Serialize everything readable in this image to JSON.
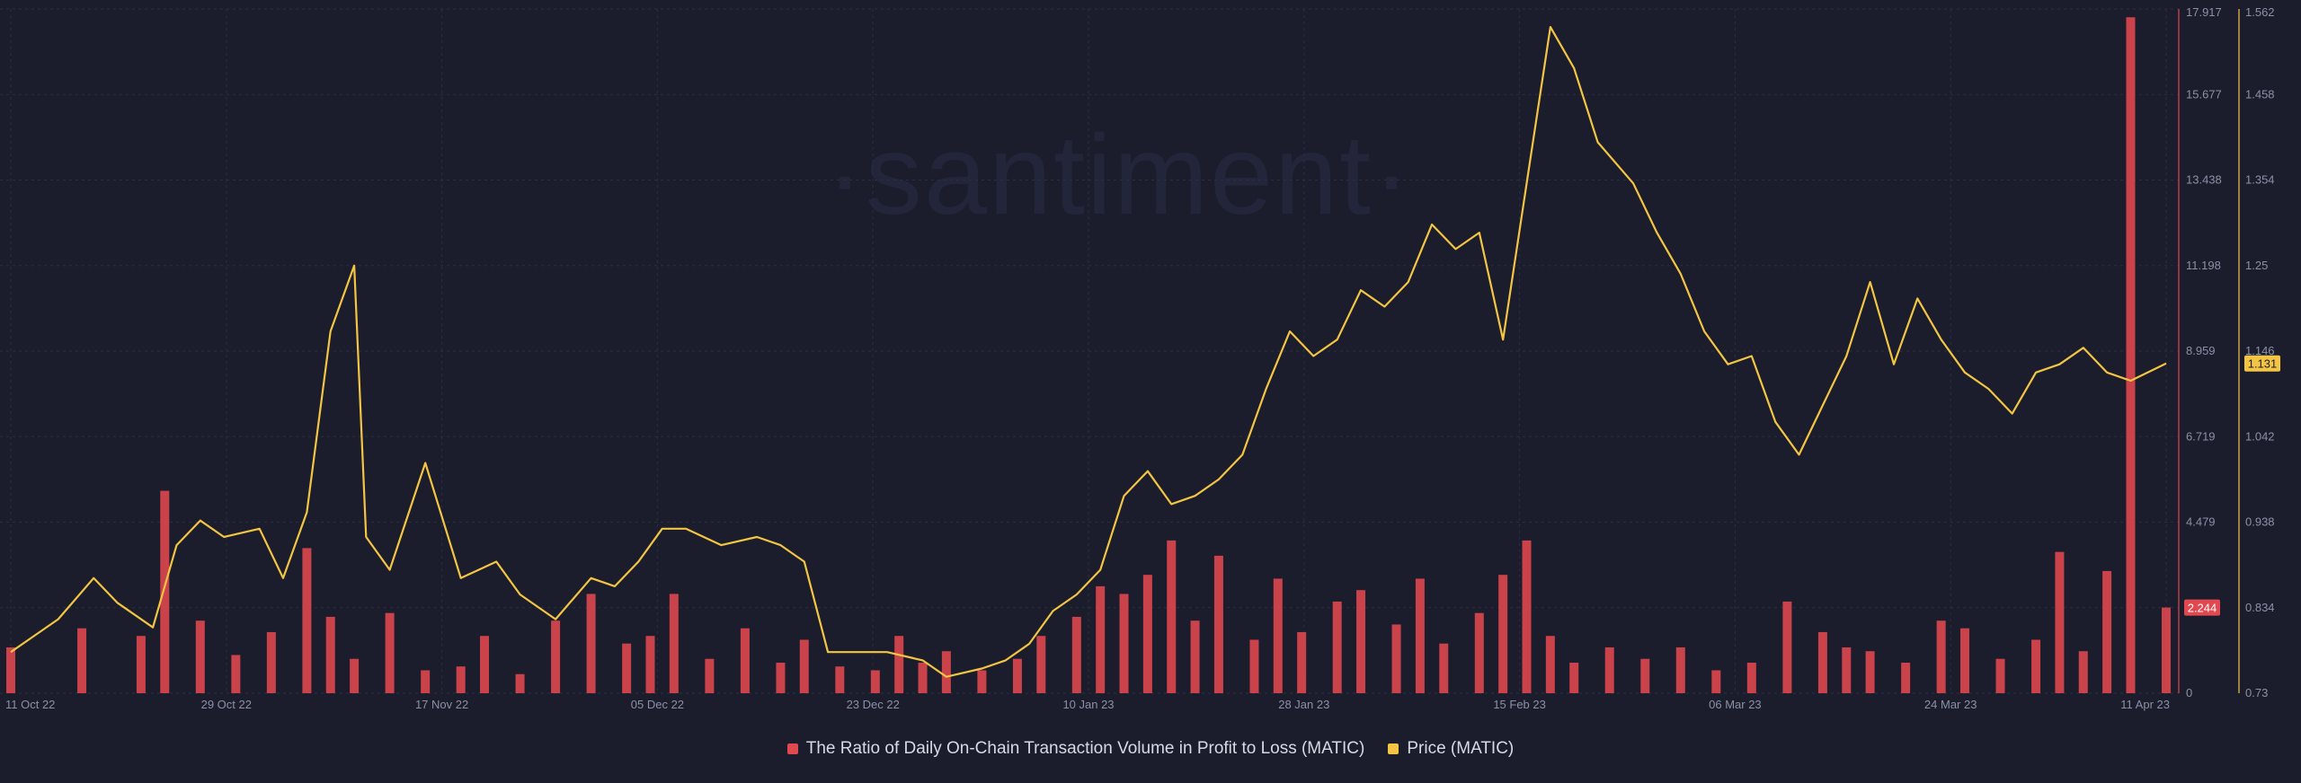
{
  "watermark": "·santiment·",
  "colors": {
    "background": "#1b1d2d",
    "ratio_series": "#e2484f",
    "price_series": "#f3c542",
    "grid": "#2b2e40",
    "axis_text": "#8c91a6"
  },
  "legend": {
    "ratio_label": "The Ratio of Daily On-Chain Transaction Volume in Profit to Loss (MATIC)",
    "price_label": "Price (MATIC)"
  },
  "chart_data": {
    "type": "bar+line",
    "x_tick_labels": [
      "11 Oct 22",
      "29 Oct 22",
      "17 Nov 22",
      "05 Dec 22",
      "23 Dec 22",
      "10 Jan 23",
      "28 Jan 23",
      "15 Feb 23",
      "06 Mar 23",
      "24 Mar 23",
      "11 Apr 23"
    ],
    "x_range": [
      "2022-10-11",
      "2023-04-11"
    ],
    "left_axis_ticks": [
      "17.917",
      "15.677",
      "13.438",
      "11.198",
      "8.959",
      "6.719",
      "4.479",
      "2.244",
      "0"
    ],
    "right_axis_ticks": [
      "1.562",
      "1.458",
      "1.354",
      "1.25",
      "1.146",
      "1.042",
      "0.938",
      "0.834",
      "0.73"
    ],
    "ratio_axis": {
      "min": 0,
      "max": 17.917
    },
    "price_axis": {
      "min": 0.73,
      "max": 1.562
    },
    "last_ratio_label": "2.244",
    "last_price_label": "1.131",
    "grid": true,
    "legend_position": "bottom-center",
    "series": [
      {
        "name": "The Ratio of Daily On-Chain Transaction Volume in Profit to Loss (MATIC)",
        "kind": "bar",
        "color": "#e2484f",
        "x": [
          "2022-10-11",
          "2022-10-17",
          "2022-10-22",
          "2022-10-24",
          "2022-10-27",
          "2022-10-30",
          "2022-11-02",
          "2022-11-05",
          "2022-11-07",
          "2022-11-09",
          "2022-11-12",
          "2022-11-15",
          "2022-11-18",
          "2022-11-20",
          "2022-11-23",
          "2022-11-26",
          "2022-11-29",
          "2022-12-02",
          "2022-12-04",
          "2022-12-06",
          "2022-12-09",
          "2022-12-12",
          "2022-12-15",
          "2022-12-17",
          "2022-12-20",
          "2022-12-23",
          "2022-12-25",
          "2022-12-27",
          "2022-12-29",
          "2023-01-01",
          "2023-01-04",
          "2023-01-06",
          "2023-01-09",
          "2023-01-11",
          "2023-01-13",
          "2023-01-15",
          "2023-01-17",
          "2023-01-19",
          "2023-01-21",
          "2023-01-24",
          "2023-01-26",
          "2023-01-28",
          "2023-01-31",
          "2023-02-02",
          "2023-02-05",
          "2023-02-07",
          "2023-02-09",
          "2023-02-12",
          "2023-02-14",
          "2023-02-16",
          "2023-02-18",
          "2023-02-20",
          "2023-02-23",
          "2023-02-26",
          "2023-03-01",
          "2023-03-04",
          "2023-03-07",
          "2023-03-10",
          "2023-03-13",
          "2023-03-15",
          "2023-03-17",
          "2023-03-20",
          "2023-03-23",
          "2023-03-25",
          "2023-03-28",
          "2023-03-31",
          "2023-04-02",
          "2023-04-04",
          "2023-04-06",
          "2023-04-08",
          "2023-04-11"
        ],
        "values": [
          1.2,
          1.7,
          1.5,
          5.3,
          1.9,
          1.0,
          1.6,
          3.8,
          2.0,
          0.9,
          2.1,
          0.6,
          0.7,
          1.5,
          0.5,
          1.9,
          2.6,
          1.3,
          1.5,
          2.6,
          0.9,
          1.7,
          0.8,
          1.4,
          0.7,
          0.6,
          1.5,
          0.8,
          1.1,
          0.6,
          0.9,
          1.5,
          2.0,
          2.8,
          2.6,
          3.1,
          4.0,
          1.9,
          3.6,
          1.4,
          3.0,
          1.6,
          2.4,
          2.7,
          1.8,
          3.0,
          1.3,
          2.1,
          3.1,
          4.0,
          1.5,
          0.8,
          1.2,
          0.9,
          1.2,
          0.6,
          0.8,
          2.4,
          1.6,
          1.2,
          1.1,
          0.8,
          1.9,
          1.7,
          0.9,
          1.4,
          3.7,
          1.1,
          3.2,
          17.7,
          2.244
        ]
      },
      {
        "name": "Price (MATIC)",
        "kind": "line",
        "color": "#f3c542",
        "x": [
          "2022-10-11",
          "2022-10-13",
          "2022-10-15",
          "2022-10-18",
          "2022-10-20",
          "2022-10-23",
          "2022-10-25",
          "2022-10-27",
          "2022-10-29",
          "2022-11-01",
          "2022-11-03",
          "2022-11-05",
          "2022-11-07",
          "2022-11-08",
          "2022-11-09",
          "2022-11-10",
          "2022-11-12",
          "2022-11-15",
          "2022-11-18",
          "2022-11-21",
          "2022-11-23",
          "2022-11-26",
          "2022-11-29",
          "2022-12-01",
          "2022-12-03",
          "2022-12-05",
          "2022-12-07",
          "2022-12-10",
          "2022-12-13",
          "2022-12-15",
          "2022-12-17",
          "2022-12-19",
          "2022-12-21",
          "2022-12-24",
          "2022-12-27",
          "2022-12-29",
          "2023-01-01",
          "2023-01-03",
          "2023-01-05",
          "2023-01-07",
          "2023-01-09",
          "2023-01-11",
          "2023-01-13",
          "2023-01-15",
          "2023-01-17",
          "2023-01-19",
          "2023-01-21",
          "2023-01-23",
          "2023-01-25",
          "2023-01-27",
          "2023-01-29",
          "2023-01-31",
          "2023-02-02",
          "2023-02-04",
          "2023-02-06",
          "2023-02-08",
          "2023-02-10",
          "2023-02-12",
          "2023-02-14",
          "2023-02-16",
          "2023-02-18",
          "2023-02-20",
          "2023-02-22",
          "2023-02-25",
          "2023-02-27",
          "2023-03-01",
          "2023-03-03",
          "2023-03-05",
          "2023-03-07",
          "2023-03-09",
          "2023-03-11",
          "2023-03-13",
          "2023-03-15",
          "2023-03-17",
          "2023-03-19",
          "2023-03-21",
          "2023-03-23",
          "2023-03-25",
          "2023-03-27",
          "2023-03-29",
          "2023-03-31",
          "2023-04-02",
          "2023-04-04",
          "2023-04-06",
          "2023-04-08",
          "2023-04-11"
        ],
        "values": [
          0.78,
          0.8,
          0.82,
          0.87,
          0.84,
          0.81,
          0.91,
          0.94,
          0.92,
          0.93,
          0.87,
          0.95,
          1.17,
          1.21,
          1.25,
          0.92,
          0.88,
          1.01,
          0.87,
          0.89,
          0.85,
          0.82,
          0.87,
          0.86,
          0.89,
          0.93,
          0.93,
          0.91,
          0.92,
          0.91,
          0.89,
          0.78,
          0.78,
          0.78,
          0.77,
          0.75,
          0.76,
          0.77,
          0.79,
          0.83,
          0.85,
          0.88,
          0.97,
          1.0,
          0.96,
          0.97,
          0.99,
          1.02,
          1.1,
          1.17,
          1.14,
          1.16,
          1.22,
          1.2,
          1.23,
          1.3,
          1.27,
          1.29,
          1.16,
          1.35,
          1.54,
          1.49,
          1.4,
          1.35,
          1.29,
          1.24,
          1.17,
          1.13,
          1.14,
          1.06,
          1.02,
          1.08,
          1.14,
          1.23,
          1.13,
          1.21,
          1.16,
          1.12,
          1.1,
          1.07,
          1.12,
          1.13,
          1.15,
          1.12,
          1.11,
          1.131
        ]
      }
    ]
  }
}
